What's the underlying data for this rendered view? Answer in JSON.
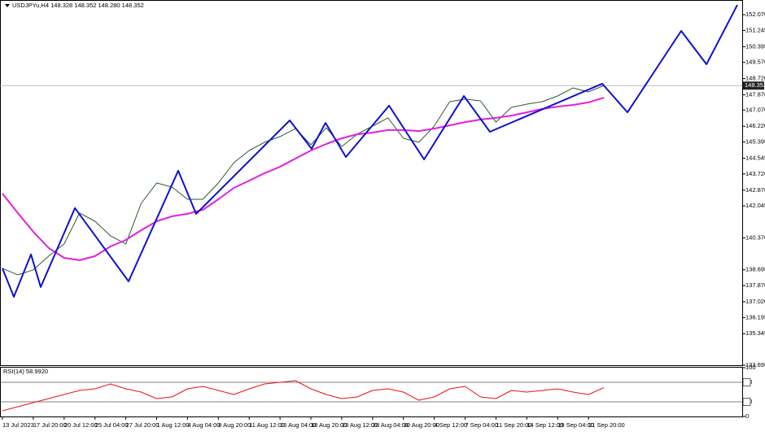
{
  "chart_data": [
    {
      "type": "line",
      "title": "USDJPYu,H4 148.328 148.352 148.280 148.352",
      "categories": [
        "13 Jul 2023",
        null,
        "17 Jul 20:00",
        null,
        "20 Jul 12:00",
        null,
        "25 Jul 04:00",
        null,
        "27 Jul 20:00",
        null,
        "1 Aug 12:00",
        null,
        "4 Aug 04:00",
        null,
        "8 Aug 20:00",
        null,
        "11 Aug 12:00",
        null,
        "16 Aug 04:00",
        null,
        "18 Aug 20:00",
        null,
        "23 Aug 12:00",
        null,
        "28 Aug 04:00",
        null,
        "30 Aug 20:00",
        null,
        "4 Sep 12:00",
        null,
        "7 Sep 04:00",
        null,
        "11 Sep 20:00",
        null,
        "14 Sep 12:00",
        null,
        "19 Sep 04:00",
        null,
        "21 Sep 20:00",
        null
      ],
      "series": [
        {
          "color": "#2e5a2e",
          "values": [
            138.77,
            138.43,
            138.69,
            139.41,
            140.05,
            141.67,
            141.24,
            140.48,
            140.05,
            142.18,
            143.25,
            143.03,
            142.39,
            142.39,
            143.25,
            144.31,
            144.95,
            145.38,
            145.68,
            146.1,
            145.25,
            146.14,
            145.16,
            145.8,
            146.23,
            146.66,
            145.59,
            145.38,
            146.23,
            147.51,
            147.64,
            147.55,
            146.44,
            147.21,
            147.38,
            147.51,
            147.81,
            148.23,
            148.02,
            148.352
          ]
        },
        {
          "color": "#e020e0",
          "values": [
            142.69,
            141.67,
            140.69,
            139.84,
            139.32,
            139.2,
            139.41,
            139.92,
            140.26,
            140.77,
            141.24,
            141.5,
            141.63,
            141.84,
            142.39,
            142.99,
            143.37,
            143.76,
            144.1,
            144.53,
            144.95,
            145.29,
            145.59,
            145.8,
            145.89,
            146.02,
            146.02,
            145.97,
            146.1,
            146.27,
            146.44,
            146.57,
            146.66,
            146.78,
            146.95,
            147.13,
            147.25,
            147.34,
            147.47,
            147.72
          ]
        },
        {
          "color": "#1010d0",
          "x": [
            0,
            0.74,
            1.85,
            2.48,
            4.7,
            8.18,
            11.4,
            12.56,
            18.63,
            20.05,
            20.95,
            22.27,
            25.07,
            27.34,
            29.92,
            31.61,
            38.89,
            40.53,
            44.01,
            45.65,
            47.65
          ],
          "values": [
            138.77,
            137.28,
            139.5,
            137.79,
            141.93,
            138.09,
            143.89,
            141.63,
            146.53,
            145.04,
            146.4,
            144.61,
            147.3,
            144.48,
            147.81,
            145.93,
            148.45,
            146.95,
            151.22,
            149.47,
            152.58
          ]
        }
      ],
      "last_price": {
        "value": 148.352,
        "label": "148.352"
      },
      "ylim": [
        133.65,
        152.84
      ],
      "yticks": [
        {
          "value": 152.07,
          "label": "152.070"
        },
        151.245,
        150.395,
        {
          "value": 149.57,
          "label": "149.570"
        },
        {
          "value": 148.72,
          "label": "148.720"
        },
        {
          "value": 147.87,
          "label": "147.870"
        },
        {
          "value": 147.07,
          "label": "147.070"
        },
        {
          "value": 146.22,
          "label": "146.220"
        },
        145.395,
        144.545,
        {
          "value": 143.72,
          "label": "143.720"
        },
        {
          "value": 142.87,
          "label": "142.870"
        },
        142.045,
        {
          "value": 140.37,
          "label": "140.370"
        },
        138.695,
        {
          "value": 137.87,
          "label": "137.870"
        },
        {
          "value": 137.02,
          "label": "137.020"
        },
        136.195,
        135.345,
        133.695
      ]
    },
    {
      "type": "line",
      "title": "RSI(14) 58.9920",
      "series": [
        {
          "color": "#ee1111",
          "values": [
            11.7,
            20,
            28.3,
            36.7,
            45,
            53.3,
            56.7,
            66.7,
            56.7,
            50,
            36.7,
            40,
            56.7,
            61.7,
            53.3,
            45,
            56.7,
            66.7,
            70,
            73.3,
            56.7,
            45,
            36.7,
            40,
            53.3,
            56.7,
            50,
            33.3,
            40,
            56.7,
            61.7,
            40,
            36.7,
            53.3,
            50,
            53.3,
            56.7,
            50,
            45,
            58.99
          ]
        }
      ],
      "levels": [
        70,
        30
      ],
      "ylim": [
        0,
        100
      ],
      "yticks": [
        100,
        70,
        30,
        0
      ]
    }
  ]
}
